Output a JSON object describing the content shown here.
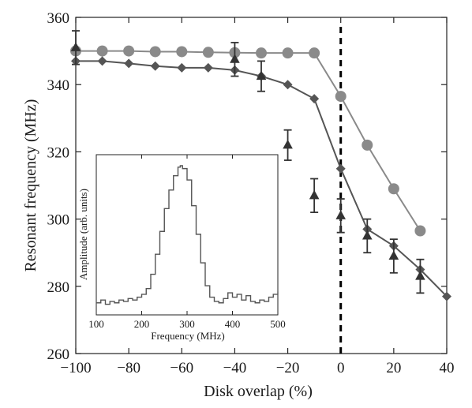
{
  "chart_data": [
    {
      "type": "scatter",
      "xlabel": "Disk overlap (%)",
      "ylabel": "Resonant frequency (MHz)",
      "xlim": [
        -100,
        40
      ],
      "ylim": [
        260,
        360
      ],
      "x_ticks": [
        -100,
        -80,
        -60,
        -40,
        -20,
        0,
        20,
        40
      ],
      "y_ticks": [
        260,
        280,
        300,
        320,
        340,
        360
      ],
      "x_tick_labels": [
        "−100",
        "−80",
        "−60",
        "−40",
        "−20",
        "0",
        "20",
        "40"
      ],
      "y_tick_labels": [
        "260",
        "280",
        "300",
        "320",
        "340",
        "360"
      ],
      "grid": false,
      "vertical_line": {
        "x": 0,
        "style": "dashed"
      },
      "series": [
        {
          "marker": "circle",
          "color": "#8a8a8a",
          "connected": true,
          "x": [
            -100,
            -90,
            -80,
            -70,
            -60,
            -50,
            -40,
            -30,
            -20,
            -10,
            0,
            10,
            20,
            30
          ],
          "y": [
            350,
            350,
            350,
            349.8,
            349.8,
            349.6,
            349.5,
            349.4,
            349.4,
            349.4,
            336.5,
            322,
            309,
            296.5
          ]
        },
        {
          "marker": "diamond",
          "color": "#555555",
          "connected": true,
          "x": [
            -100,
            -90,
            -80,
            -70,
            -60,
            -50,
            -40,
            -30,
            -20,
            -10,
            0,
            10,
            20,
            30,
            40
          ],
          "y": [
            347,
            347,
            346.3,
            345.5,
            345,
            345,
            344.3,
            342.5,
            340,
            335.8,
            315,
            297,
            292,
            285,
            277
          ]
        },
        {
          "marker": "triangle",
          "color": "#333333",
          "connected": false,
          "x": [
            -100,
            -40,
            -30,
            -20,
            -10,
            0,
            10,
            20,
            30
          ],
          "y": [
            351,
            347.5,
            342.5,
            322,
            307,
            301,
            295,
            289,
            283
          ],
          "err": [
            5,
            5,
            4.5,
            4.5,
            5,
            5,
            5,
            5,
            5
          ]
        }
      ]
    },
    {
      "type": "line",
      "xlabel": "Frequency (MHz)",
      "ylabel": "Amplitude (arb. units)",
      "xlim": [
        100,
        500
      ],
      "x_ticks": [
        100,
        200,
        300,
        400,
        500
      ],
      "x_tick_labels": [
        "100",
        "200",
        "300",
        "400",
        "500"
      ],
      "ylim": [
        0,
        1
      ],
      "y_tick_labels": [],
      "color": "#555555",
      "x": [
        100,
        110,
        120,
        130,
        140,
        150,
        160,
        170,
        180,
        190,
        200,
        210,
        220,
        230,
        240,
        250,
        260,
        270,
        280,
        285,
        290,
        300,
        310,
        320,
        330,
        340,
        350,
        360,
        370,
        380,
        390,
        400,
        410,
        420,
        430,
        440,
        450,
        460,
        470,
        480,
        490,
        500
      ],
      "y": [
        0.04,
        0.06,
        0.03,
        0.05,
        0.04,
        0.06,
        0.05,
        0.07,
        0.06,
        0.08,
        0.1,
        0.14,
        0.24,
        0.38,
        0.54,
        0.7,
        0.83,
        0.93,
        0.99,
        1.0,
        0.98,
        0.9,
        0.72,
        0.52,
        0.32,
        0.16,
        0.08,
        0.05,
        0.04,
        0.07,
        0.11,
        0.08,
        0.1,
        0.06,
        0.09,
        0.05,
        0.04,
        0.06,
        0.05,
        0.08,
        0.1,
        0.12
      ]
    }
  ]
}
